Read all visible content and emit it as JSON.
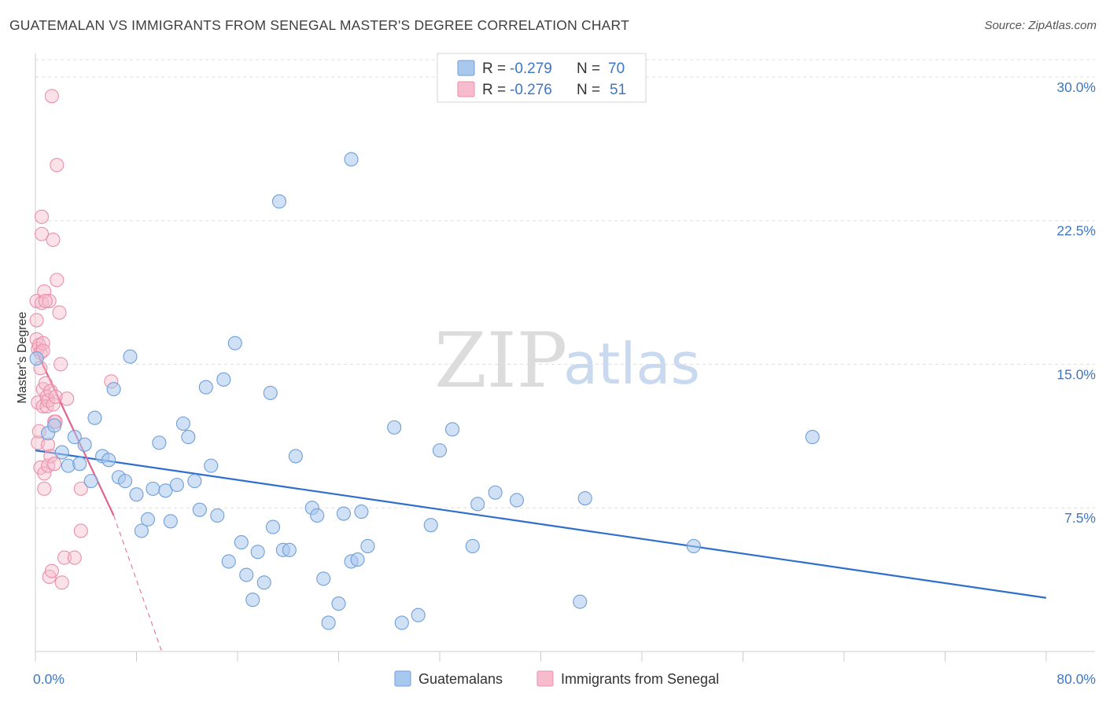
{
  "title": "GUATEMALAN VS IMMIGRANTS FROM SENEGAL MASTER'S DEGREE CORRELATION CHART",
  "source": "Source: ZipAtlas.com",
  "watermark": {
    "zip": "ZIP",
    "atlas": "atlas"
  },
  "colors": {
    "guatemalan_fill": "#a9c8ee",
    "guatemalan_stroke": "#6f9fd8",
    "guatemalan_line": "#2f6fcc",
    "senegal_fill": "#f6bccd",
    "senegal_stroke": "#ea8fab",
    "senegal_line": "#e0638b",
    "grid": "#dddddd",
    "tick_text": "#3d77c4"
  },
  "legend": {
    "rows": [
      {
        "r_label": "R =",
        "r_value": "-0.279",
        "n_label": "N =",
        "n_value": "70"
      },
      {
        "r_label": "R =",
        "r_value": "-0.276",
        "n_label": "N =",
        "n_value": "51"
      }
    ]
  },
  "chart_data": {
    "type": "scatter",
    "title": "GUATEMALAN VS IMMIGRANTS FROM SENEGAL MASTER'S DEGREE CORRELATION CHART",
    "xlabel": "",
    "ylabel": "Master's Degree",
    "xlim": [
      0,
      80
    ],
    "ylim": [
      0,
      30.9
    ],
    "x_tick_labels": [
      "0.0%",
      "80.0%"
    ],
    "y_ticks": [
      7.5,
      15.0,
      22.5,
      30.0
    ],
    "y_tick_labels": [
      "7.5%",
      "15.0%",
      "22.5%",
      "30.0%"
    ],
    "grid": true,
    "legend_position": "top-center",
    "series": [
      {
        "name": "Guatemalans",
        "color": "#a9c8ee",
        "regression": {
          "x": [
            0,
            80
          ],
          "y": [
            10.5,
            2.8
          ]
        },
        "points": [
          [
            0.1,
            15.3
          ],
          [
            1.0,
            11.4
          ],
          [
            1.5,
            11.8
          ],
          [
            2.1,
            10.4
          ],
          [
            2.6,
            9.7
          ],
          [
            3.1,
            11.2
          ],
          [
            3.5,
            9.8
          ],
          [
            3.9,
            10.8
          ],
          [
            4.4,
            8.9
          ],
          [
            4.7,
            12.2
          ],
          [
            5.3,
            10.2
          ],
          [
            5.8,
            10.0
          ],
          [
            6.2,
            13.7
          ],
          [
            6.6,
            9.1
          ],
          [
            7.1,
            8.9
          ],
          [
            7.5,
            15.4
          ],
          [
            8.0,
            8.2
          ],
          [
            8.4,
            6.3
          ],
          [
            8.9,
            6.9
          ],
          [
            9.3,
            8.5
          ],
          [
            9.8,
            10.9
          ],
          [
            10.3,
            8.4
          ],
          [
            10.7,
            6.8
          ],
          [
            11.2,
            8.7
          ],
          [
            11.7,
            11.9
          ],
          [
            12.1,
            11.2
          ],
          [
            12.6,
            8.9
          ],
          [
            13.0,
            7.4
          ],
          [
            13.5,
            13.8
          ],
          [
            13.9,
            9.7
          ],
          [
            14.4,
            7.1
          ],
          [
            14.9,
            14.2
          ],
          [
            15.3,
            4.7
          ],
          [
            15.8,
            16.1
          ],
          [
            16.3,
            5.7
          ],
          [
            16.7,
            4.0
          ],
          [
            17.2,
            2.7
          ],
          [
            17.6,
            5.2
          ],
          [
            18.1,
            3.6
          ],
          [
            18.6,
            13.5
          ],
          [
            18.8,
            6.5
          ],
          [
            19.3,
            23.5
          ],
          [
            19.6,
            5.3
          ],
          [
            20.1,
            5.3
          ],
          [
            20.6,
            10.2
          ],
          [
            21.9,
            7.5
          ],
          [
            22.3,
            7.1
          ],
          [
            22.8,
            3.8
          ],
          [
            23.2,
            1.5
          ],
          [
            24.0,
            2.5
          ],
          [
            24.4,
            7.2
          ],
          [
            25.0,
            25.7
          ],
          [
            25.0,
            4.7
          ],
          [
            25.5,
            4.8
          ],
          [
            25.8,
            7.3
          ],
          [
            26.3,
            5.5
          ],
          [
            28.4,
            11.7
          ],
          [
            29.0,
            1.5
          ],
          [
            30.3,
            1.9
          ],
          [
            31.3,
            6.6
          ],
          [
            32.0,
            10.5
          ],
          [
            33.0,
            11.6
          ],
          [
            34.6,
            5.5
          ],
          [
            35.0,
            7.7
          ],
          [
            36.4,
            8.3
          ],
          [
            38.1,
            7.9
          ],
          [
            43.1,
            2.6
          ],
          [
            43.5,
            8.0
          ],
          [
            52.1,
            5.5
          ],
          [
            61.5,
            11.2
          ]
        ]
      },
      {
        "name": "Immigrants from Senegal",
        "color": "#f6bccd",
        "regression": {
          "x": [
            0,
            6.2
          ],
          "y": [
            15.8,
            7.1
          ]
        },
        "regression_extension": {
          "x": [
            6.2,
            10.0
          ],
          "y": [
            7.1,
            0.0
          ]
        },
        "points": [
          [
            0.1,
            18.3
          ],
          [
            0.1,
            17.3
          ],
          [
            0.1,
            16.3
          ],
          [
            0.2,
            15.8
          ],
          [
            0.2,
            13.0
          ],
          [
            0.2,
            10.9
          ],
          [
            0.3,
            16.0
          ],
          [
            0.3,
            11.5
          ],
          [
            0.4,
            15.6
          ],
          [
            0.4,
            9.6
          ],
          [
            0.5,
            22.7
          ],
          [
            0.5,
            21.8
          ],
          [
            0.5,
            18.2
          ],
          [
            0.6,
            16.1
          ],
          [
            0.6,
            15.7
          ],
          [
            0.6,
            13.7
          ],
          [
            0.6,
            12.8
          ],
          [
            0.7,
            18.8
          ],
          [
            0.7,
            9.3
          ],
          [
            0.7,
            8.5
          ],
          [
            0.8,
            14.0
          ],
          [
            0.9,
            13.3
          ],
          [
            0.9,
            12.8
          ],
          [
            1.0,
            13.1
          ],
          [
            1.0,
            10.8
          ],
          [
            1.0,
            9.7
          ],
          [
            1.1,
            18.3
          ],
          [
            1.1,
            3.9
          ],
          [
            1.2,
            13.6
          ],
          [
            1.2,
            10.2
          ],
          [
            1.3,
            29.0
          ],
          [
            1.3,
            4.2
          ],
          [
            1.4,
            21.5
          ],
          [
            1.4,
            12.9
          ],
          [
            1.5,
            12.0
          ],
          [
            1.5,
            9.8
          ],
          [
            1.6,
            13.3
          ],
          [
            1.6,
            12.0
          ],
          [
            1.7,
            25.4
          ],
          [
            1.7,
            19.4
          ],
          [
            1.9,
            17.7
          ],
          [
            2.0,
            15.0
          ],
          [
            2.1,
            3.6
          ],
          [
            2.3,
            4.9
          ],
          [
            2.5,
            13.2
          ],
          [
            3.1,
            4.9
          ],
          [
            3.6,
            6.3
          ],
          [
            3.6,
            8.5
          ],
          [
            6.0,
            14.1
          ],
          [
            0.8,
            18.3
          ],
          [
            0.4,
            14.8
          ]
        ]
      }
    ]
  }
}
